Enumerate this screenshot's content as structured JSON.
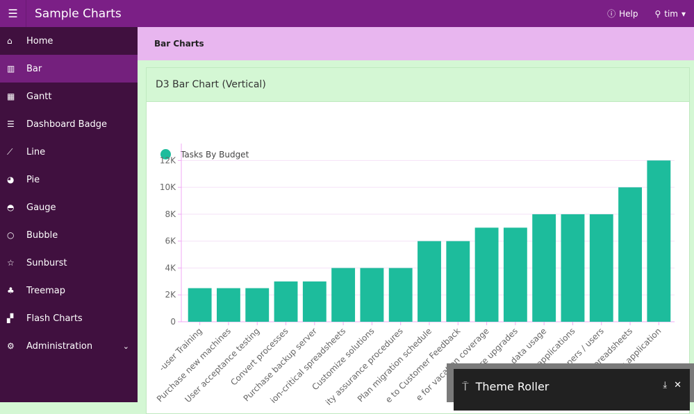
{
  "header": {
    "title": "Sample Charts",
    "help": "Help",
    "user": "tim"
  },
  "sidebar": {
    "items": [
      {
        "label": "Home",
        "icon": "home-icon",
        "glyph": "⌂"
      },
      {
        "label": "Bar",
        "icon": "bar-chart-icon",
        "glyph": "▥",
        "active": true
      },
      {
        "label": "Gantt",
        "icon": "calendar-icon",
        "glyph": "▦"
      },
      {
        "label": "Dashboard Badge",
        "icon": "list-icon",
        "glyph": "☰"
      },
      {
        "label": "Line",
        "icon": "line-chart-icon",
        "glyph": "⟋"
      },
      {
        "label": "Pie",
        "icon": "pie-chart-icon",
        "glyph": "◕"
      },
      {
        "label": "Gauge",
        "icon": "gauge-icon",
        "glyph": "◓"
      },
      {
        "label": "Bubble",
        "icon": "circle-icon",
        "glyph": "○"
      },
      {
        "label": "Sunburst",
        "icon": "star-icon",
        "glyph": "☆"
      },
      {
        "label": "Treemap",
        "icon": "tree-icon",
        "glyph": "♣"
      },
      {
        "label": "Flash Charts",
        "icon": "puzzle-icon",
        "glyph": "▞"
      },
      {
        "label": "Administration",
        "icon": "gear-icon",
        "glyph": "⚙",
        "expandable": true
      }
    ]
  },
  "breadcrumb": {
    "title": "Bar Charts"
  },
  "region": {
    "title": "D3 Bar Chart (Vertical)"
  },
  "chart_data": {
    "type": "bar",
    "legend": [
      "Tasks By Budget"
    ],
    "color": "#1dbc9c",
    "categories": [
      "-user Training",
      "Purchase new machines",
      "User acceptance testing",
      "Convert processes",
      "Purchase backup server",
      "ion-critical spreadsheets",
      "Customize solutions",
      "ity assurance procedures",
      "Plan migration schedule",
      "e to Customer Feedback",
      "e for vacation coverage",
      "HP are upgrades",
      "p data usage",
      "e applications",
      "lopers / users",
      "spreadsheets",
      "k application"
    ],
    "series": [
      {
        "name": "Tasks By Budget",
        "values": [
          2500,
          2500,
          2500,
          3000,
          3000,
          4000,
          4000,
          4000,
          6000,
          6000,
          7000,
          7000,
          8000,
          8000,
          8000,
          10000,
          12000
        ]
      }
    ],
    "yticks": [
      "0",
      "2K",
      "4K",
      "6K",
      "8K",
      "10K",
      "12K"
    ],
    "ylim": [
      0,
      13000
    ],
    "grid": true
  },
  "theme_roller": {
    "title": "Theme Roller"
  }
}
